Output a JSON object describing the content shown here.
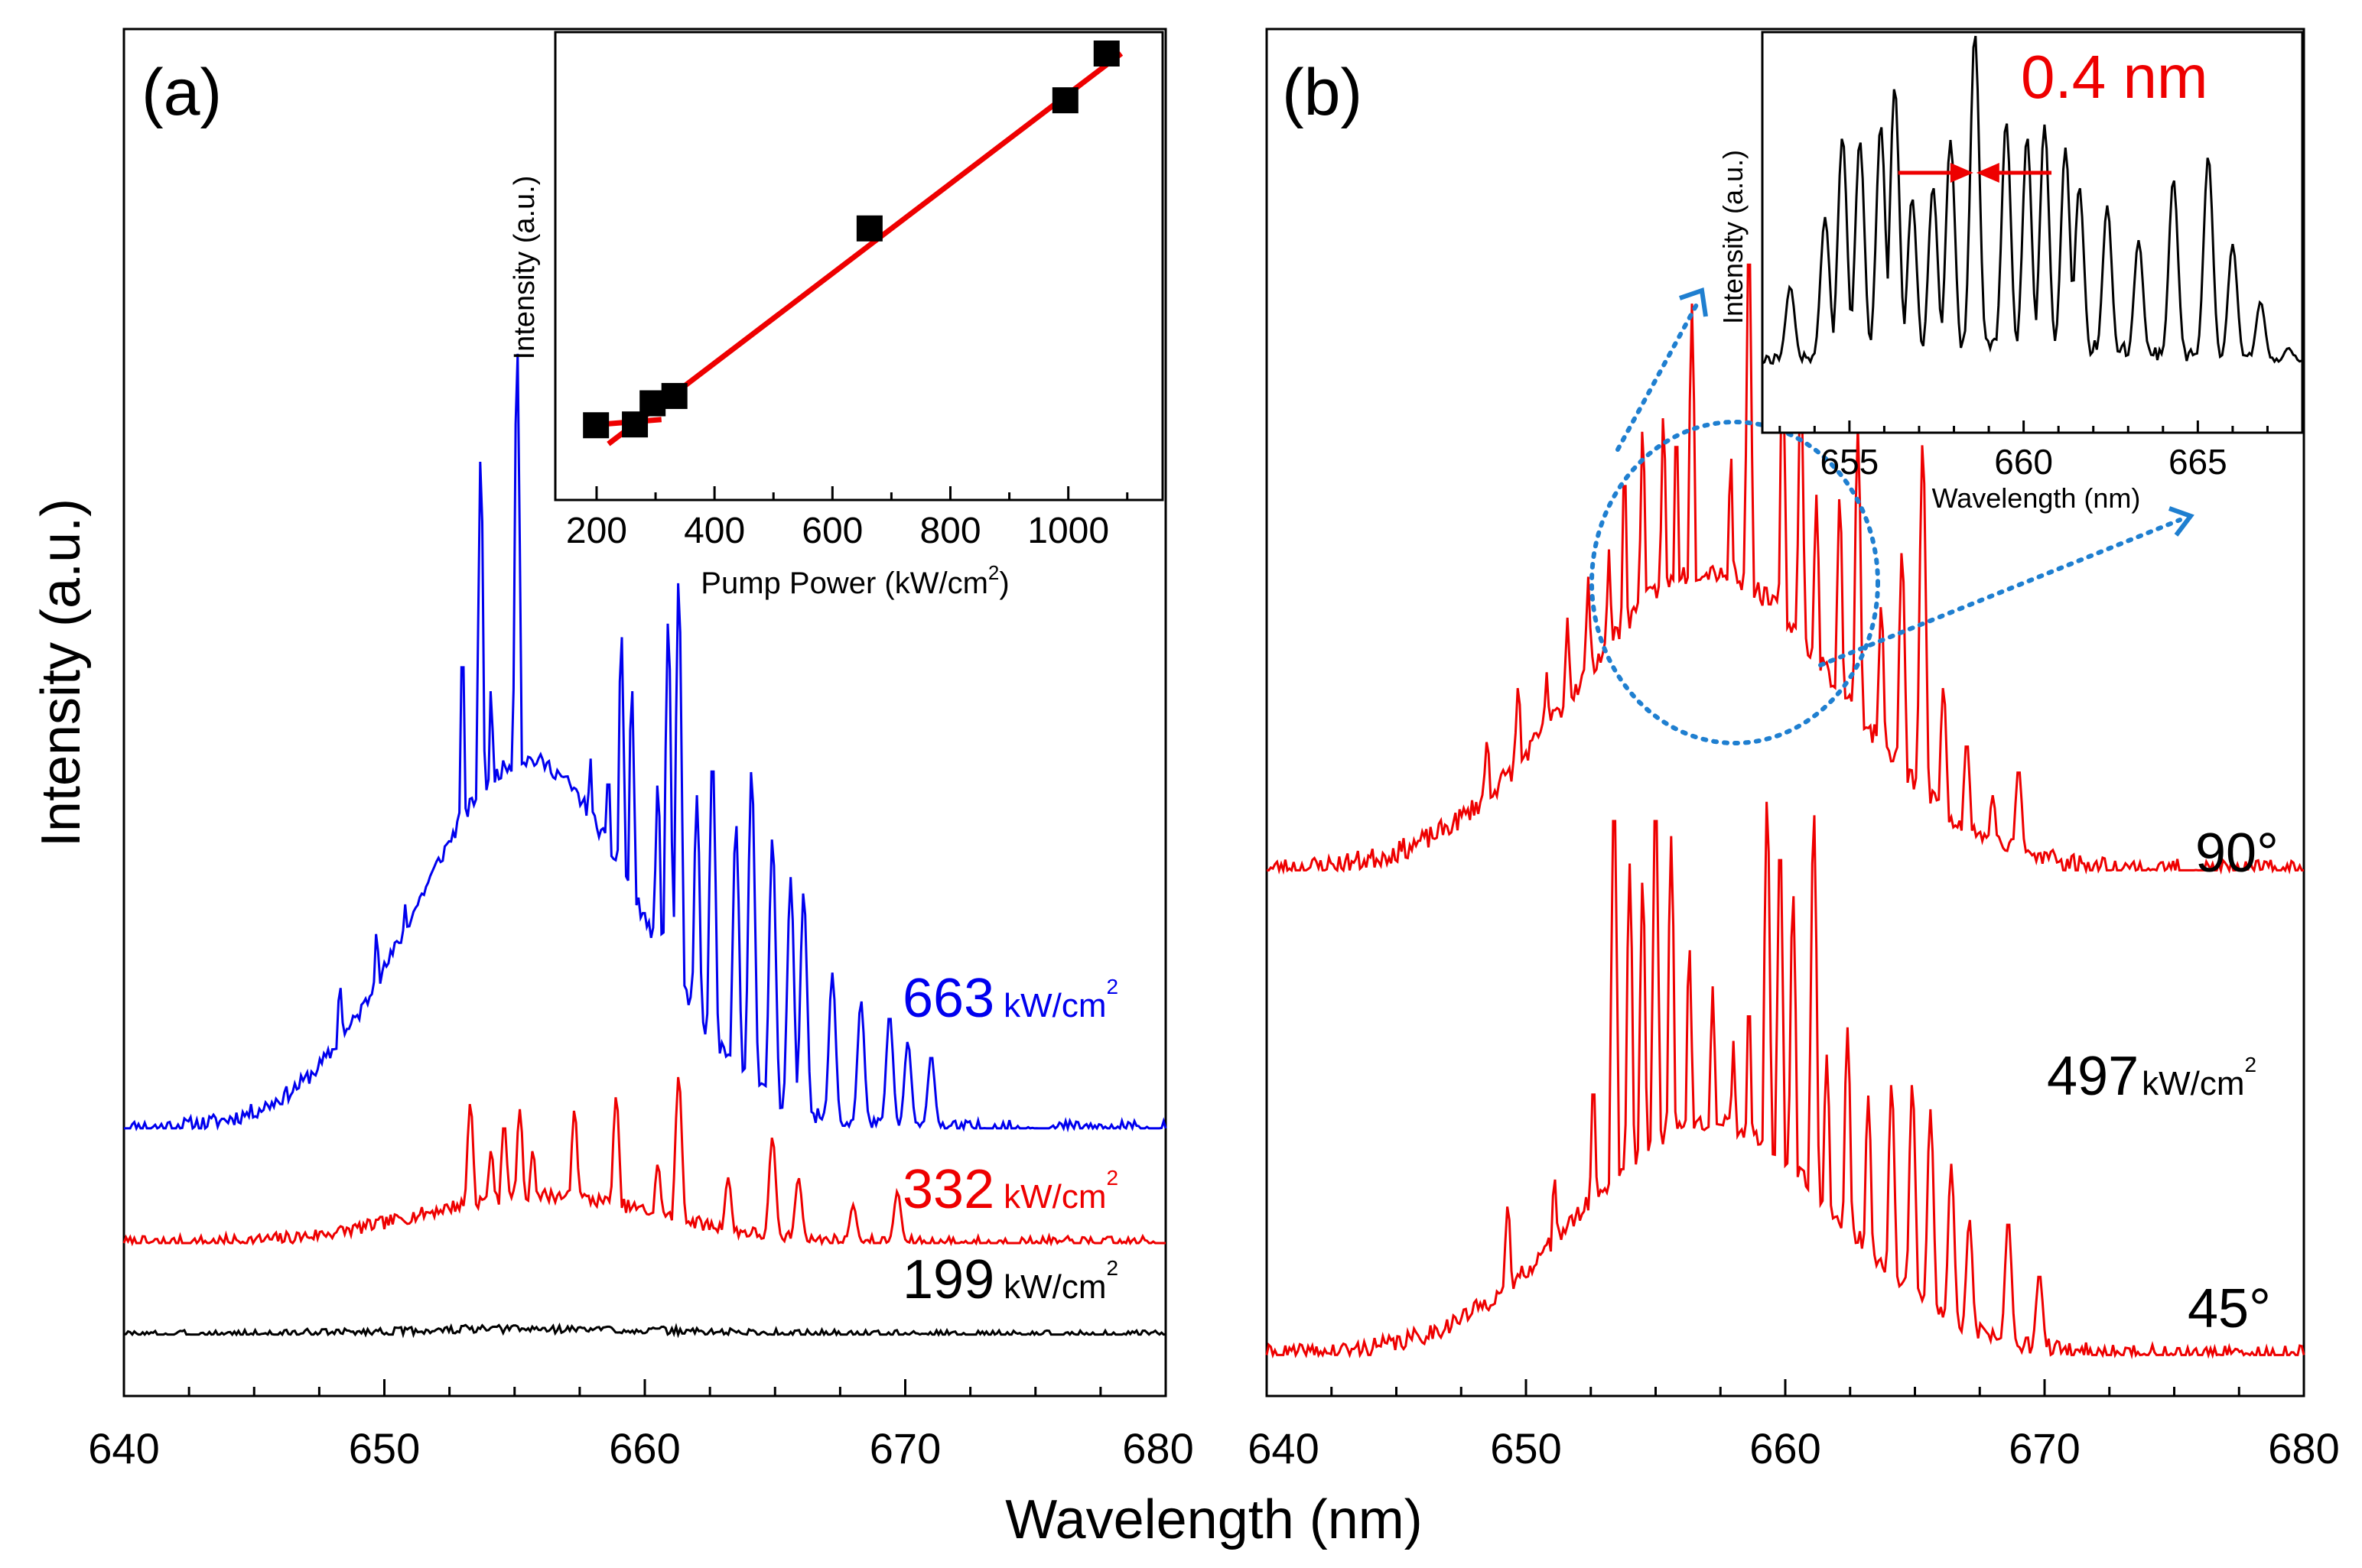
{
  "chart_data": [
    {
      "type": "line",
      "panel_label": "(a)",
      "xlabel": "Wavelength (nm)",
      "ylabel": "Intensity (a.u.)",
      "xlim": [
        640,
        680
      ],
      "ylim": [
        0,
        1
      ],
      "x_ticks": [
        "640",
        "650",
        "660",
        "670",
        "680"
      ],
      "unit_sup": "2",
      "series": [
        {
          "name": "663 kW/cm2",
          "value": "663",
          "unit": "kW/cm",
          "color": "#0000ee",
          "baseline": 0.196,
          "noise": 0.006,
          "seed": 11,
          "envelope": {
            "center": 655.5,
            "width": 6.0,
            "amp": 0.27
          },
          "peaks": [
            [
              648.3,
              0.3
            ],
            [
              649.7,
              0.34
            ],
            [
              650.8,
              0.36
            ],
            [
              651.5,
              0.33
            ],
            [
              652.2,
              0.4
            ],
            [
              653.0,
              0.55
            ],
            [
              653.7,
              0.69
            ],
            [
              654.1,
              0.52
            ],
            [
              654.6,
              0.46
            ],
            [
              655.1,
              0.77
            ],
            [
              655.6,
              0.46
            ],
            [
              656.2,
              0.42
            ],
            [
              656.6,
              0.45
            ],
            [
              657.2,
              0.3
            ],
            [
              657.9,
              0.47
            ],
            [
              658.6,
              0.46
            ],
            [
              659.1,
              0.56
            ],
            [
              659.5,
              0.52
            ],
            [
              660.5,
              0.45
            ],
            [
              660.9,
              0.57
            ],
            [
              661.3,
              0.6
            ],
            [
              662.0,
              0.44
            ],
            [
              662.6,
              0.47
            ],
            [
              663.5,
              0.42
            ],
            [
              664.1,
              0.46
            ],
            [
              664.9,
              0.41
            ],
            [
              665.6,
              0.38
            ],
            [
              666.1,
              0.37
            ],
            [
              667.2,
              0.31
            ],
            [
              668.3,
              0.29
            ],
            [
              669.4,
              0.28
            ],
            [
              670.1,
              0.26
            ],
            [
              671.0,
              0.25
            ]
          ]
        },
        {
          "name": "332 kW/cm2",
          "value": "332",
          "unit": "kW/cm",
          "color": "#ee0000",
          "baseline": 0.112,
          "noise": 0.005,
          "seed": 7,
          "envelope": {
            "center": 656.0,
            "width": 6.5,
            "amp": 0.035
          },
          "peaks": [
            [
              653.3,
              0.215
            ],
            [
              654.1,
              0.18
            ],
            [
              654.6,
              0.2
            ],
            [
              655.2,
              0.21
            ],
            [
              655.7,
              0.18
            ],
            [
              657.3,
              0.21
            ],
            [
              658.9,
              0.22
            ],
            [
              660.5,
              0.17
            ],
            [
              661.3,
              0.235
            ],
            [
              663.2,
              0.16
            ],
            [
              664.9,
              0.19
            ],
            [
              665.9,
              0.16
            ],
            [
              668.0,
              0.14
            ],
            [
              669.7,
              0.15
            ]
          ]
        },
        {
          "name": "199 kW/cm2",
          "value": "199",
          "unit": "kW/cm",
          "color": "#000000",
          "baseline": 0.045,
          "noise": 0.003,
          "seed": 3,
          "envelope": {
            "center": 656.0,
            "width": 8.0,
            "amp": 0.004
          },
          "peaks": [
            [
              653.1,
              0.052
            ],
            [
              655.0,
              0.052
            ],
            [
              658.6,
              0.051
            ]
          ]
        }
      ],
      "inset": {
        "type": "scatter",
        "xlabel": "Pump Power (kW/cm",
        "xlabel_sup": "2",
        "xlabel_end": ")",
        "ylabel": "Intensity (a.u.)",
        "xlim": [
          130,
          1160
        ],
        "ylim": [
          0,
          1
        ],
        "x_ticks": [
          "200",
          "400",
          "600",
          "800",
          "1000"
        ],
        "points": [
          [
            199,
            0.086
          ],
          [
            265,
            0.088
          ],
          [
            295,
            0.14
          ],
          [
            332,
            0.158
          ],
          [
            663,
            0.57
          ],
          [
            995,
            0.885
          ],
          [
            1065,
            1.0
          ]
        ],
        "fit_line": [
          [
            220,
            0.04
          ],
          [
            1090,
            1.0
          ]
        ],
        "fit_line_2": [
          [
            180,
            0.085
          ],
          [
            310,
            0.1
          ]
        ]
      }
    },
    {
      "type": "line",
      "panel_label": "(b)",
      "xlabel": "Wavelength (nm)",
      "xlim": [
        640,
        680
      ],
      "ylim": [
        0,
        1
      ],
      "x_ticks": [
        "640",
        "650",
        "660",
        "670",
        "680"
      ],
      "series": [
        {
          "name": "90°",
          "label": "90°",
          "color": "#ee0000",
          "baseline": 0.385,
          "noise": 0.008,
          "seed": 23,
          "envelope": {
            "center": 657.0,
            "width": 7.2,
            "amp": 0.22
          },
          "peaks": [
            [
              648.5,
              0.48
            ],
            [
              649.7,
              0.52
            ],
            [
              650.8,
              0.53
            ],
            [
              651.6,
              0.57
            ],
            [
              652.4,
              0.6
            ],
            [
              653.2,
              0.62
            ],
            [
              653.8,
              0.68
            ],
            [
              654.5,
              0.71
            ],
            [
              655.3,
              0.72
            ],
            [
              655.8,
              0.71
            ],
            [
              656.4,
              0.8
            ],
            [
              657.3,
              0.54
            ],
            [
              657.9,
              0.69
            ],
            [
              658.6,
              0.85
            ],
            [
              659.3,
              0.48
            ],
            [
              659.9,
              0.76
            ],
            [
              660.6,
              0.75
            ],
            [
              661.2,
              0.66
            ],
            [
              662.1,
              0.66
            ],
            [
              662.8,
              0.71
            ],
            [
              663.7,
              0.58
            ],
            [
              664.5,
              0.62
            ],
            [
              665.3,
              0.7
            ],
            [
              666.1,
              0.52
            ],
            [
              667.0,
              0.48
            ],
            [
              668.0,
              0.44
            ],
            [
              669.0,
              0.46
            ],
            [
              670.3,
              0.4
            ]
          ]
        },
        {
          "name": "45°",
          "label": "45°",
          "color": "#ee0000",
          "baseline": 0.03,
          "noise": 0.007,
          "seed": 41,
          "envelope": {
            "center": 657.0,
            "width": 7.0,
            "amp": 0.17
          },
          "peaks": [
            [
              649.3,
              0.14
            ],
            [
              651.1,
              0.16
            ],
            [
              652.6,
              0.23
            ],
            [
              653.4,
              0.44
            ],
            [
              654.0,
              0.39
            ],
            [
              654.5,
              0.38
            ],
            [
              655.0,
              0.44
            ],
            [
              655.6,
              0.41
            ],
            [
              656.3,
              0.33
            ],
            [
              657.2,
              0.3
            ],
            [
              658.0,
              0.26
            ],
            [
              658.6,
              0.29
            ],
            [
              659.3,
              0.44
            ],
            [
              659.8,
              0.41
            ],
            [
              660.3,
              0.37
            ],
            [
              661.1,
              0.43
            ],
            [
              661.6,
              0.25
            ],
            [
              662.4,
              0.27
            ],
            [
              663.2,
              0.22
            ],
            [
              664.1,
              0.23
            ],
            [
              664.9,
              0.23
            ],
            [
              665.6,
              0.21
            ],
            [
              666.4,
              0.17
            ],
            [
              667.1,
              0.13
            ],
            [
              668.6,
              0.13
            ],
            [
              669.8,
              0.09
            ]
          ]
        }
      ],
      "power_label": {
        "value": "497",
        "unit": "kW/cm",
        "sup": "2"
      },
      "inset": {
        "type": "line",
        "xlabel": "Wavelength (nm)",
        "ylabel": "Intensity (a.u.)",
        "xlim": [
          652.5,
          668.0
        ],
        "ylim": [
          0,
          1
        ],
        "x_ticks": [
          "655",
          "660",
          "665"
        ],
        "baseline": 0.14,
        "noise": 0.02,
        "seed": 57,
        "peaks": [
          [
            653.3,
            0.34
          ],
          [
            654.3,
            0.52
          ],
          [
            654.8,
            0.73
          ],
          [
            655.3,
            0.72
          ],
          [
            655.9,
            0.76
          ],
          [
            656.3,
            0.86
          ],
          [
            656.8,
            0.57
          ],
          [
            657.4,
            0.6
          ],
          [
            657.9,
            0.72
          ],
          [
            658.6,
            1.0
          ],
          [
            659.5,
            0.77
          ],
          [
            660.1,
            0.73
          ],
          [
            660.6,
            0.76
          ],
          [
            661.2,
            0.7
          ],
          [
            661.6,
            0.6
          ],
          [
            662.4,
            0.55
          ],
          [
            663.3,
            0.46
          ],
          [
            664.3,
            0.62
          ],
          [
            665.3,
            0.68
          ],
          [
            666.0,
            0.45
          ],
          [
            666.8,
            0.3
          ],
          [
            667.6,
            0.18
          ]
        ],
        "annotation": "0.4 nm",
        "arrow_wavelengths": [
          656.4,
          658.6,
          660.8
        ]
      }
    }
  ]
}
